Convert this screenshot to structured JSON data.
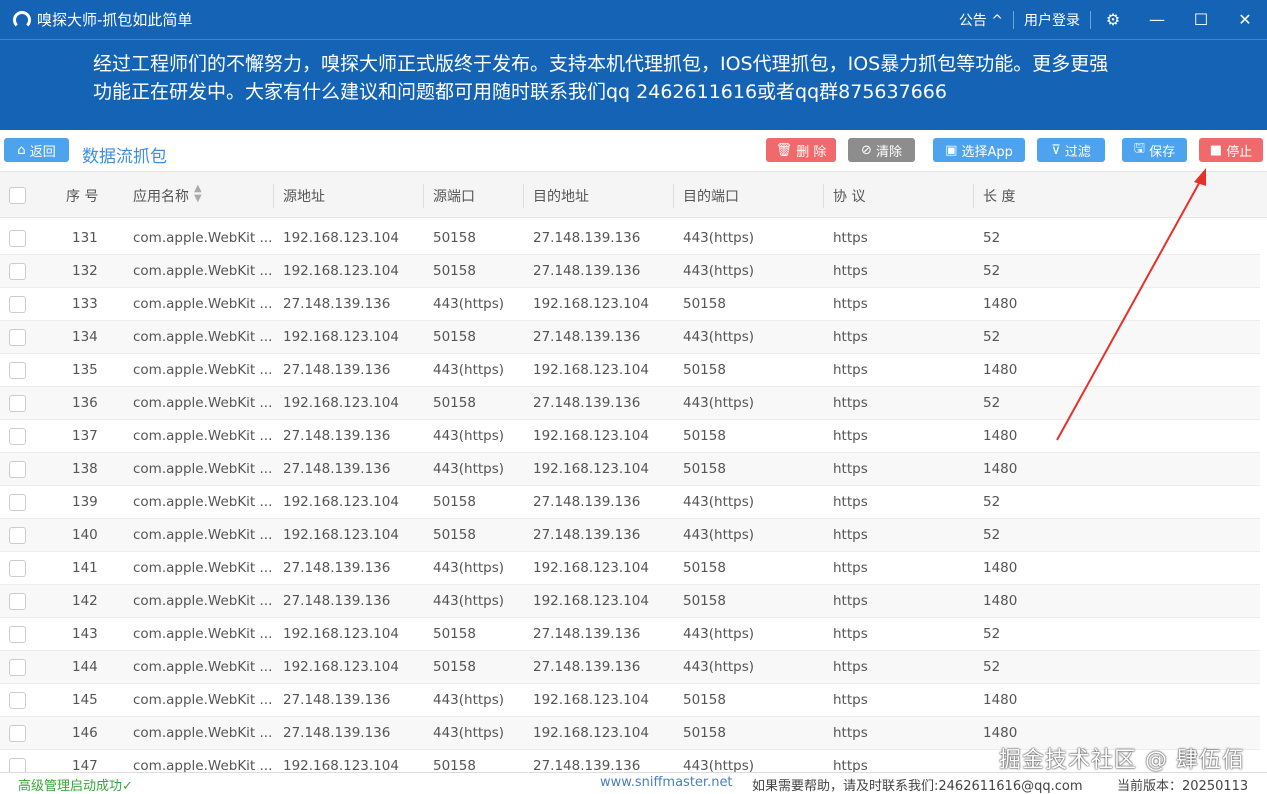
{
  "window": {
    "title": "嗅探大师-抓包如此简单",
    "notice": "公告",
    "notice_icon": "chevron-up-icon",
    "login": "用户登录"
  },
  "banner": {
    "line1": "经过工程师们的不懈努力，嗅探大师正式版终于发布。支持本机代理抓包，IOS代理抓包，IOS暴力抓包等功能。更多更强",
    "line2": "功能正在研发中。大家有什么建议和问题都可用随时联系我们qq 2462611616或者qq群875637666"
  },
  "toolbar": {
    "back": "返回",
    "title": "数据流抓包",
    "delete": "删 除",
    "clear": "清除",
    "select_app": "选择App",
    "filter": "过滤",
    "save": "保存",
    "stop": "停止"
  },
  "colors": {
    "titlebar": "#1463b4",
    "delete": "#f0696b",
    "clear": "#8d8d8d",
    "primary": "#4da3ee",
    "stop": "#f0696b"
  },
  "table": {
    "headers": [
      "序 号",
      "应用名称",
      "源地址",
      "源端口",
      "目的地址",
      "目的端口",
      "协 议",
      "长 度"
    ],
    "rows": [
      [
        "131",
        "com.apple.WebKit ...",
        "192.168.123.104",
        "50158",
        "27.148.139.136",
        "443(https)",
        "https",
        "52"
      ],
      [
        "132",
        "com.apple.WebKit ...",
        "192.168.123.104",
        "50158",
        "27.148.139.136",
        "443(https)",
        "https",
        "52"
      ],
      [
        "133",
        "com.apple.WebKit ...",
        "27.148.139.136",
        "443(https)",
        "192.168.123.104",
        "50158",
        "https",
        "1480"
      ],
      [
        "134",
        "com.apple.WebKit ...",
        "192.168.123.104",
        "50158",
        "27.148.139.136",
        "443(https)",
        "https",
        "52"
      ],
      [
        "135",
        "com.apple.WebKit ...",
        "27.148.139.136",
        "443(https)",
        "192.168.123.104",
        "50158",
        "https",
        "1480"
      ],
      [
        "136",
        "com.apple.WebKit ...",
        "192.168.123.104",
        "50158",
        "27.148.139.136",
        "443(https)",
        "https",
        "52"
      ],
      [
        "137",
        "com.apple.WebKit ...",
        "27.148.139.136",
        "443(https)",
        "192.168.123.104",
        "50158",
        "https",
        "1480"
      ],
      [
        "138",
        "com.apple.WebKit ...",
        "27.148.139.136",
        "443(https)",
        "192.168.123.104",
        "50158",
        "https",
        "1480"
      ],
      [
        "139",
        "com.apple.WebKit ...",
        "192.168.123.104",
        "50158",
        "27.148.139.136",
        "443(https)",
        "https",
        "52"
      ],
      [
        "140",
        "com.apple.WebKit ...",
        "192.168.123.104",
        "50158",
        "27.148.139.136",
        "443(https)",
        "https",
        "52"
      ],
      [
        "141",
        "com.apple.WebKit ...",
        "27.148.139.136",
        "443(https)",
        "192.168.123.104",
        "50158",
        "https",
        "1480"
      ],
      [
        "142",
        "com.apple.WebKit ...",
        "27.148.139.136",
        "443(https)",
        "192.168.123.104",
        "50158",
        "https",
        "1480"
      ],
      [
        "143",
        "com.apple.WebKit ...",
        "192.168.123.104",
        "50158",
        "27.148.139.136",
        "443(https)",
        "https",
        "52"
      ],
      [
        "144",
        "com.apple.WebKit ...",
        "192.168.123.104",
        "50158",
        "27.148.139.136",
        "443(https)",
        "https",
        "52"
      ],
      [
        "145",
        "com.apple.WebKit ...",
        "27.148.139.136",
        "443(https)",
        "192.168.123.104",
        "50158",
        "https",
        "1480"
      ],
      [
        "146",
        "com.apple.WebKit ...",
        "27.148.139.136",
        "443(https)",
        "192.168.123.104",
        "50158",
        "https",
        "1480"
      ],
      [
        "147",
        "com.apple.WebKit ...",
        "192.168.123.104",
        "50158",
        "27.148.139.136",
        "443(https)",
        "https",
        ""
      ]
    ]
  },
  "status": {
    "left": "高级管理启动成功✓",
    "site": "www.sniffmaster.net",
    "help": "如果需要帮助，请及时联系我们:2462611616@qq.com",
    "version": "当前版本：20250113"
  },
  "watermark": "掘金技术社区 @ 肆伍佰"
}
